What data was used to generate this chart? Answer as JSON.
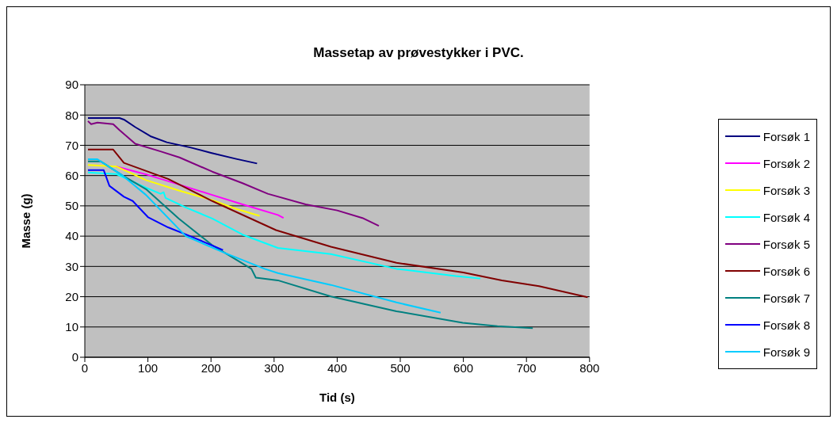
{
  "chart_data": {
    "type": "line",
    "title": "Massetap av prøvestykker i PVC.",
    "xlabel": "Tid (s)",
    "ylabel": "Masse (g)",
    "xlim": [
      0,
      800
    ],
    "xticks": [
      0,
      100,
      200,
      300,
      400,
      500,
      600,
      700,
      800
    ],
    "ylim": [
      0,
      90
    ],
    "yticks": [
      0,
      10,
      20,
      30,
      40,
      50,
      60,
      70,
      80,
      90
    ],
    "grid": "y",
    "legend": "right",
    "marker": "none",
    "line_style": "solid",
    "series": [
      {
        "name": "Forsøk 1",
        "color": "#000080",
        "x": [
          5,
          55,
          62,
          80,
          104,
          130,
          167,
          200,
          240,
          273
        ],
        "values": [
          79,
          79,
          78.5,
          76,
          73,
          71,
          69.3,
          67.5,
          65.5,
          64
        ]
      },
      {
        "name": "Forsøk 2",
        "color": "#ff00ff",
        "x": [
          50,
          97,
          150,
          202,
          250,
          306,
          315
        ],
        "values": [
          63,
          60.4,
          57,
          53.6,
          50.5,
          47,
          46
        ]
      },
      {
        "name": "Forsøk 3",
        "color": "#ffff00",
        "x": [
          5,
          50,
          97,
          150,
          202,
          240,
          277
        ],
        "values": [
          63.5,
          63,
          58.5,
          55,
          51.9,
          49,
          46.7
        ]
      },
      {
        "name": "Forsøk 4",
        "color": "#00ffff",
        "x": [
          5,
          50,
          97,
          120,
          125,
          128,
          160,
          202,
          250,
          306,
          390,
          494,
          588,
          627
        ],
        "values": [
          61,
          60.5,
          56,
          54,
          54.5,
          52.6,
          49.5,
          45.8,
          40.5,
          36.1,
          34.1,
          29.2,
          26.8,
          26
        ]
      },
      {
        "name": "Forsøk 5",
        "color": "#800080",
        "x": [
          5,
          10,
          20,
          45,
          55,
          80,
          120,
          150,
          202,
          250,
          290,
          350,
          400,
          440,
          466
        ],
        "values": [
          78,
          77,
          77.5,
          77,
          75,
          70.5,
          68,
          66,
          61.3,
          57.5,
          54,
          50.5,
          48.5,
          46,
          43.4
        ]
      },
      {
        "name": "Forsøk 6",
        "color": "#800000",
        "x": [
          5,
          45,
          62,
          132,
          202,
          303,
          390,
          494,
          600,
          661,
          720,
          797
        ],
        "values": [
          68.6,
          68.6,
          64.2,
          58.9,
          51.6,
          42,
          36.5,
          31.2,
          28,
          25.4,
          23.5,
          19.8
        ]
      },
      {
        "name": "Forsøk 7",
        "color": "#008080",
        "x": [
          5,
          25,
          60,
          97,
          149,
          202,
          264,
          271,
          306,
          390,
          494,
          599,
          654,
          710
        ],
        "values": [
          64.7,
          64.7,
          60,
          55.5,
          45.8,
          37,
          29.2,
          26.3,
          25.4,
          20.1,
          15.2,
          11.4,
          10.3,
          9.6
        ]
      },
      {
        "name": "Forsøk 8",
        "color": "#0000ff",
        "x": [
          5,
          30,
          39,
          62,
          76,
          100,
          132,
          167,
          219
        ],
        "values": [
          61.8,
          61.8,
          56.6,
          53,
          51.6,
          46.3,
          42.9,
          40,
          35.4
        ]
      },
      {
        "name": "Forsøk 9",
        "color": "#00ccff",
        "x": [
          5,
          20,
          60,
          97,
          160,
          219,
          285,
          306,
          390,
          494,
          564
        ],
        "values": [
          65.4,
          65.4,
          60,
          53.6,
          40,
          34.7,
          29.2,
          27.8,
          23.9,
          18.1,
          14.7
        ]
      }
    ]
  }
}
